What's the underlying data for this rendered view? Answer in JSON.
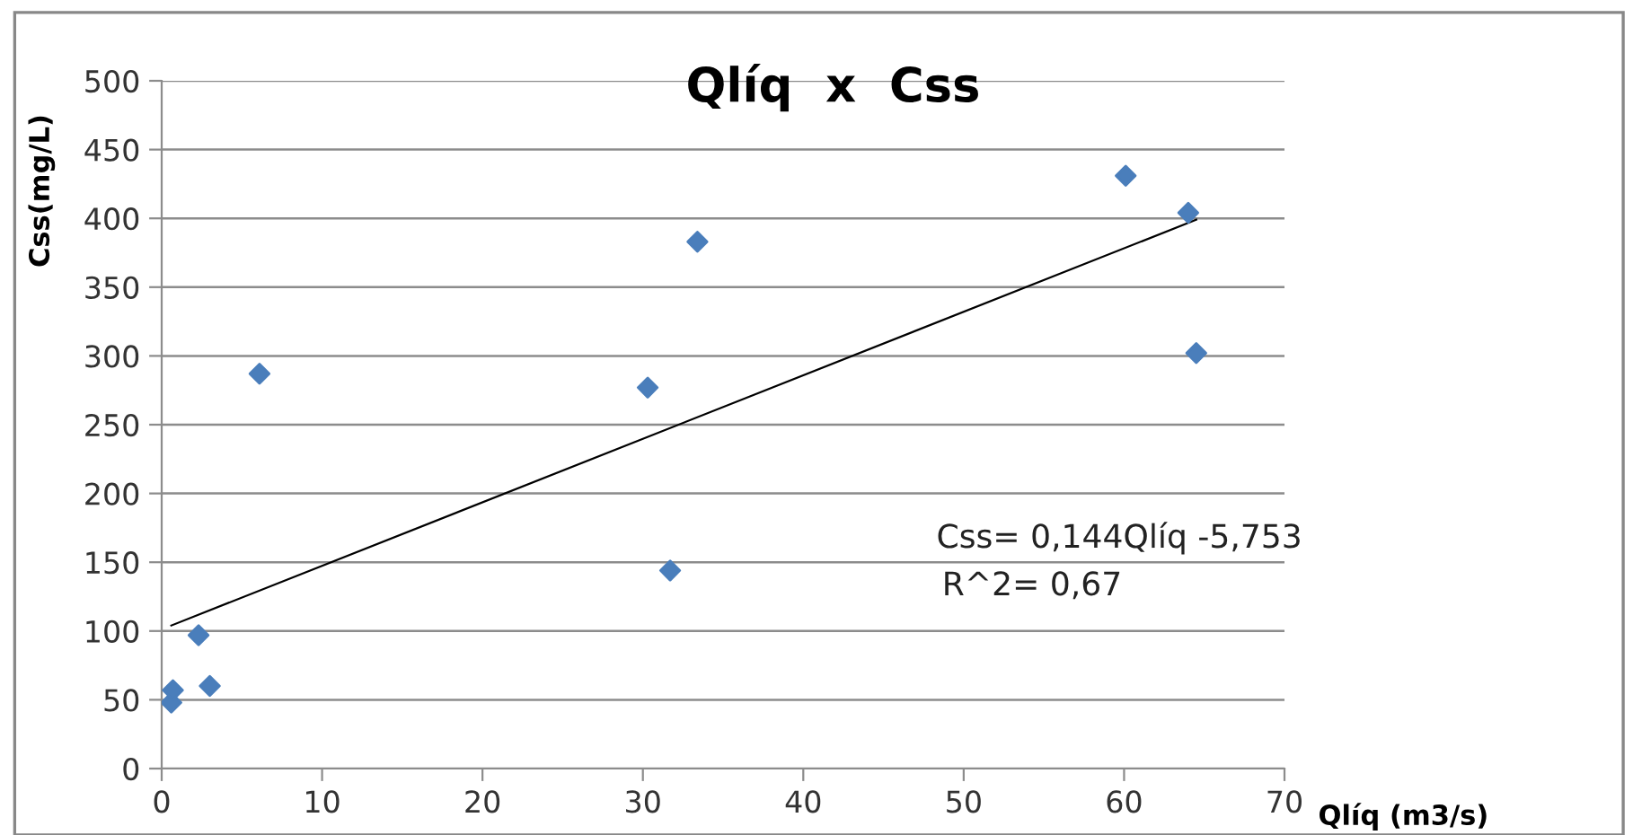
{
  "chart_data": {
    "type": "scatter",
    "title": "Qlíq  x  Css",
    "xlabel": "Qlíq (m3/s)",
    "ylabel": "Css(mg/L)",
    "xlim": [
      0,
      70
    ],
    "xticks": [
      0,
      10,
      20,
      30,
      40,
      50,
      60,
      70
    ],
    "ylim": [
      0,
      500
    ],
    "yticks": [
      0,
      50,
      100,
      150,
      200,
      250,
      300,
      350,
      400,
      450,
      500
    ],
    "grid": "y",
    "marker": "diamond",
    "legend": false,
    "annotations": [
      "Css= 0,144Qlíq -5,753",
      "R^2= 0,67"
    ],
    "series": [
      {
        "color": "#4a7ebb",
        "x": [
          0.6,
          0.7,
          2.3,
          3.0,
          6.1,
          30.3,
          31.7,
          33.4,
          60.1,
          64.0,
          64.5
        ],
        "values": [
          48,
          57,
          97,
          60,
          287,
          277,
          144,
          383,
          431,
          404,
          302
        ]
      },
      {
        "type": "line",
        "color": "#000000",
        "x": [
          0.6,
          64.5
        ],
        "values": [
          104,
          399
        ],
        "marker": "none"
      }
    ]
  }
}
